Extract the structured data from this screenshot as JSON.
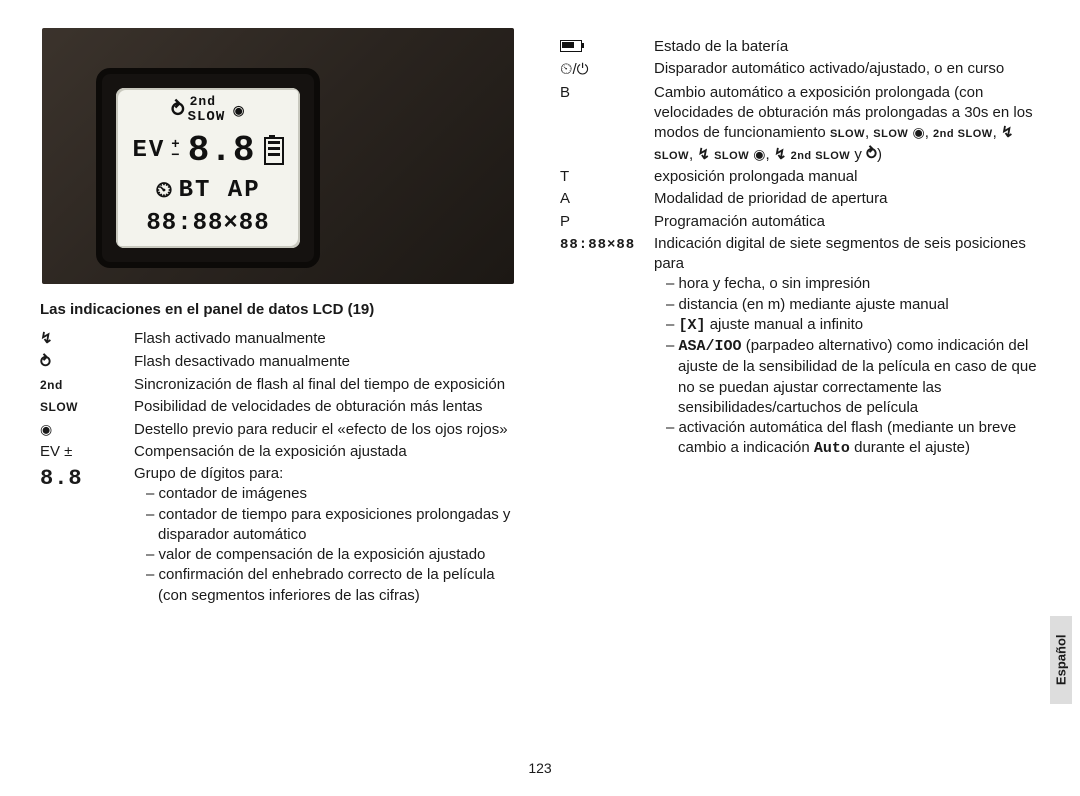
{
  "page_number": "123",
  "side_tab": "Español",
  "section_title": "Las indicaciones en el panel de datos LCD (19)",
  "lcd": {
    "line1_2nd": "2nd",
    "line1_slow": "SLOW",
    "line2_ev": "EV",
    "line2_digits": "8.8",
    "line3": "BT AP",
    "line4": "88:88×88",
    "plus": "+",
    "minus": "−"
  },
  "left_items": [
    {
      "symbol_type": "flash_on",
      "desc": "Flash activado manualmente"
    },
    {
      "symbol_type": "flash_off",
      "desc": "Flash desactivado manualmente"
    },
    {
      "symbol_type": "text_small",
      "symbol_text": "2nd",
      "desc": "Sincronización de flash al final del tiempo de exposición"
    },
    {
      "symbol_type": "text_small",
      "symbol_text": "SLOW",
      "desc": "Posibilidad de velocidades de obturación más lentas"
    },
    {
      "symbol_type": "eye",
      "desc": "Destello previo para reducir el «efecto de los ojos rojos»"
    },
    {
      "symbol_type": "text",
      "symbol_text": "EV ±",
      "desc": "Compensación de la exposición ajustada"
    },
    {
      "symbol_type": "seven_seg",
      "symbol_text": "8.8",
      "desc": "Grupo de dígitos para:",
      "sub": [
        "contador de imágenes",
        "contador de tiempo para exposiciones prolongadas y disparador automático",
        "valor de compensación de la exposición ajustado",
        "confirmación del enhebrado correcto de la película (con segmentos inferiores de las cifras)"
      ]
    }
  ],
  "right_items": [
    {
      "symbol_type": "battery",
      "desc": "Estado de la batería"
    },
    {
      "symbol_type": "timer_power",
      "desc": "Disparador automático activado/ajustado, o en curso"
    },
    {
      "symbol_type": "text",
      "symbol_text": "B",
      "desc_html": "Cambio automático a exposición prolongada (con velocidades de obturación más prolongadas a 30s en los modos de funcionamiento <span class='tiny'>SLOW</span>, <span class='tiny'>SLOW</span> <span class='eye-icon'></span>, <span class='tiny'>2nd SLOW</span>, <span class='flash-on-icon'></span> <span class='tiny'>SLOW</span>, <span class='flash-on-icon'></span> <span class='tiny'>SLOW</span> <span class='eye-icon'></span>, <span class='flash-on-icon'></span> <span class='tiny'>2nd SLOW</span> y <span class='flasharrow-icon'></span>)"
    },
    {
      "symbol_type": "text",
      "symbol_text": "T",
      "desc": "exposición prolongada manual"
    },
    {
      "symbol_type": "text",
      "symbol_text": "A",
      "desc": "Modalidad de prioridad de apertura"
    },
    {
      "symbol_type": "text",
      "symbol_text": "P",
      "desc": "Programación automática"
    },
    {
      "symbol_type": "seven_seg",
      "symbol_text": "88:88×88",
      "desc": "Indicación digital de siete segmentos de seis posiciones para",
      "sub_html": [
        "hora y fecha, o sin impresión",
        "distancia (en m) mediante ajuste manual",
        "<span class='seg-icon'>[X]</span> ajuste manual a infinito",
        "<span class='seg-icon'>ASA/IOO</span> (parpadeo alternativo) como indicación del ajuste de la sensibilidad de la película en caso de que no se puedan ajustar correctamente las sensibilidades/cartuchos de película",
        "activación automática del flash (mediante un breve cambio a indicación <span class='seg-icon'>Auto</span> durante el ajuste)"
      ]
    }
  ]
}
